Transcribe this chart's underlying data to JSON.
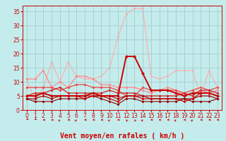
{
  "title": "",
  "xlabel": "Vent moyen/en rafales ( km/h )",
  "xlim": [
    -0.5,
    23.5
  ],
  "ylim": [
    0,
    37
  ],
  "xticks": [
    0,
    1,
    2,
    3,
    4,
    5,
    6,
    7,
    8,
    9,
    10,
    11,
    12,
    13,
    14,
    15,
    16,
    17,
    18,
    19,
    20,
    21,
    22,
    23
  ],
  "yticks": [
    0,
    5,
    10,
    15,
    20,
    25,
    30,
    35
  ],
  "bg_color": "#c4ecec",
  "grid_color": "#a0c8c8",
  "series": [
    {
      "x": [
        0,
        1,
        2,
        3,
        4,
        5,
        6,
        7,
        8,
        9,
        10,
        11,
        12,
        13,
        14,
        15,
        16,
        17,
        18,
        19,
        20,
        21,
        22,
        23
      ],
      "y": [
        11,
        3,
        8,
        17,
        10,
        17,
        12,
        11,
        11,
        12,
        15,
        26,
        34,
        36,
        36,
        12,
        11,
        12,
        14,
        14,
        14,
        5,
        14,
        8
      ],
      "color": "#ffb0b0",
      "lw": 0.9,
      "ms": 2.0,
      "zo": 1
    },
    {
      "x": [
        0,
        1,
        2,
        3,
        4,
        5,
        6,
        7,
        8,
        9,
        10,
        11,
        12,
        13,
        14,
        15,
        16,
        17,
        18,
        19,
        20,
        21,
        22,
        23
      ],
      "y": [
        11,
        11,
        14,
        8,
        10,
        8,
        12,
        12,
        11,
        9,
        9,
        8,
        8,
        8,
        7,
        6,
        7,
        8,
        7,
        5,
        6,
        7,
        6,
        7
      ],
      "color": "#ff8888",
      "lw": 0.9,
      "ms": 2.0,
      "zo": 2
    },
    {
      "x": [
        0,
        1,
        2,
        3,
        4,
        5,
        6,
        7,
        8,
        9,
        10,
        11,
        12,
        13,
        14,
        15,
        16,
        17,
        18,
        19,
        20,
        21,
        22,
        23
      ],
      "y": [
        8,
        8,
        8,
        8,
        7,
        8,
        9,
        9,
        8,
        8,
        8,
        7,
        5,
        5,
        8,
        7,
        7,
        7,
        7,
        6,
        7,
        8,
        7,
        8
      ],
      "color": "#ee4444",
      "lw": 0.9,
      "ms": 2.0,
      "zo": 3
    },
    {
      "x": [
        0,
        1,
        2,
        3,
        4,
        5,
        6,
        7,
        8,
        9,
        10,
        11,
        12,
        13,
        14,
        15,
        16,
        17,
        18,
        19,
        20,
        21,
        22,
        23
      ],
      "y": [
        5,
        6,
        6,
        7,
        8,
        6,
        6,
        6,
        6,
        6,
        7,
        6,
        6,
        6,
        5,
        5,
        5,
        5,
        5,
        6,
        5,
        7,
        7,
        6
      ],
      "color": "#cc2222",
      "lw": 0.9,
      "ms": 2.0,
      "zo": 4
    },
    {
      "x": [
        0,
        1,
        2,
        3,
        4,
        5,
        6,
        7,
        8,
        9,
        10,
        11,
        12,
        13,
        14,
        15,
        16,
        17,
        18,
        19,
        20,
        21,
        22,
        23
      ],
      "y": [
        5,
        5,
        6,
        5,
        5,
        5,
        5,
        5,
        6,
        5,
        5,
        5,
        19,
        19,
        13,
        7,
        7,
        7,
        6,
        5,
        6,
        6,
        6,
        5
      ],
      "color": "#cc0000",
      "lw": 1.4,
      "ms": 2.5,
      "zo": 7
    },
    {
      "x": [
        0,
        1,
        2,
        3,
        4,
        5,
        6,
        7,
        8,
        9,
        10,
        11,
        12,
        13,
        14,
        15,
        16,
        17,
        18,
        19,
        20,
        21,
        22,
        23
      ],
      "y": [
        5,
        5,
        6,
        5,
        5,
        5,
        5,
        4,
        5,
        5,
        4,
        3,
        5,
        5,
        4,
        4,
        4,
        4,
        4,
        3,
        4,
        6,
        6,
        5
      ],
      "color": "#cc0000",
      "lw": 0.9,
      "ms": 2.0,
      "zo": 6
    },
    {
      "x": [
        0,
        1,
        2,
        3,
        4,
        5,
        6,
        7,
        8,
        9,
        10,
        11,
        12,
        13,
        14,
        15,
        16,
        17,
        18,
        19,
        20,
        21,
        22,
        23
      ],
      "y": [
        4,
        4,
        5,
        4,
        5,
        5,
        5,
        5,
        5,
        5,
        5,
        4,
        5,
        5,
        5,
        4,
        4,
        4,
        4,
        4,
        4,
        5,
        5,
        4
      ],
      "color": "#aa0000",
      "lw": 0.8,
      "ms": 2.0,
      "zo": 5
    },
    {
      "x": [
        0,
        1,
        2,
        3,
        4,
        5,
        6,
        7,
        8,
        9,
        10,
        11,
        12,
        13,
        14,
        15,
        16,
        17,
        18,
        19,
        20,
        21,
        22,
        23
      ],
      "y": [
        4,
        3,
        3,
        3,
        4,
        4,
        4,
        4,
        5,
        4,
        3,
        2,
        4,
        4,
        3,
        3,
        3,
        3,
        3,
        4,
        3,
        3,
        3,
        4
      ],
      "color": "#880000",
      "lw": 0.8,
      "ms": 2.0,
      "zo": 5
    }
  ],
  "wind_dirs": [
    225,
    225,
    270,
    270,
    45,
    270,
    45,
    270,
    270,
    270,
    45,
    270,
    315,
    315,
    45,
    270,
    270,
    270,
    45,
    270,
    45,
    270,
    270,
    270
  ],
  "arrow_color": "#cc0000",
  "xlabel_fontsize": 7,
  "tick_fontsize": 5.5,
  "tick_color": "#cc0000",
  "spine_color": "#cc0000"
}
